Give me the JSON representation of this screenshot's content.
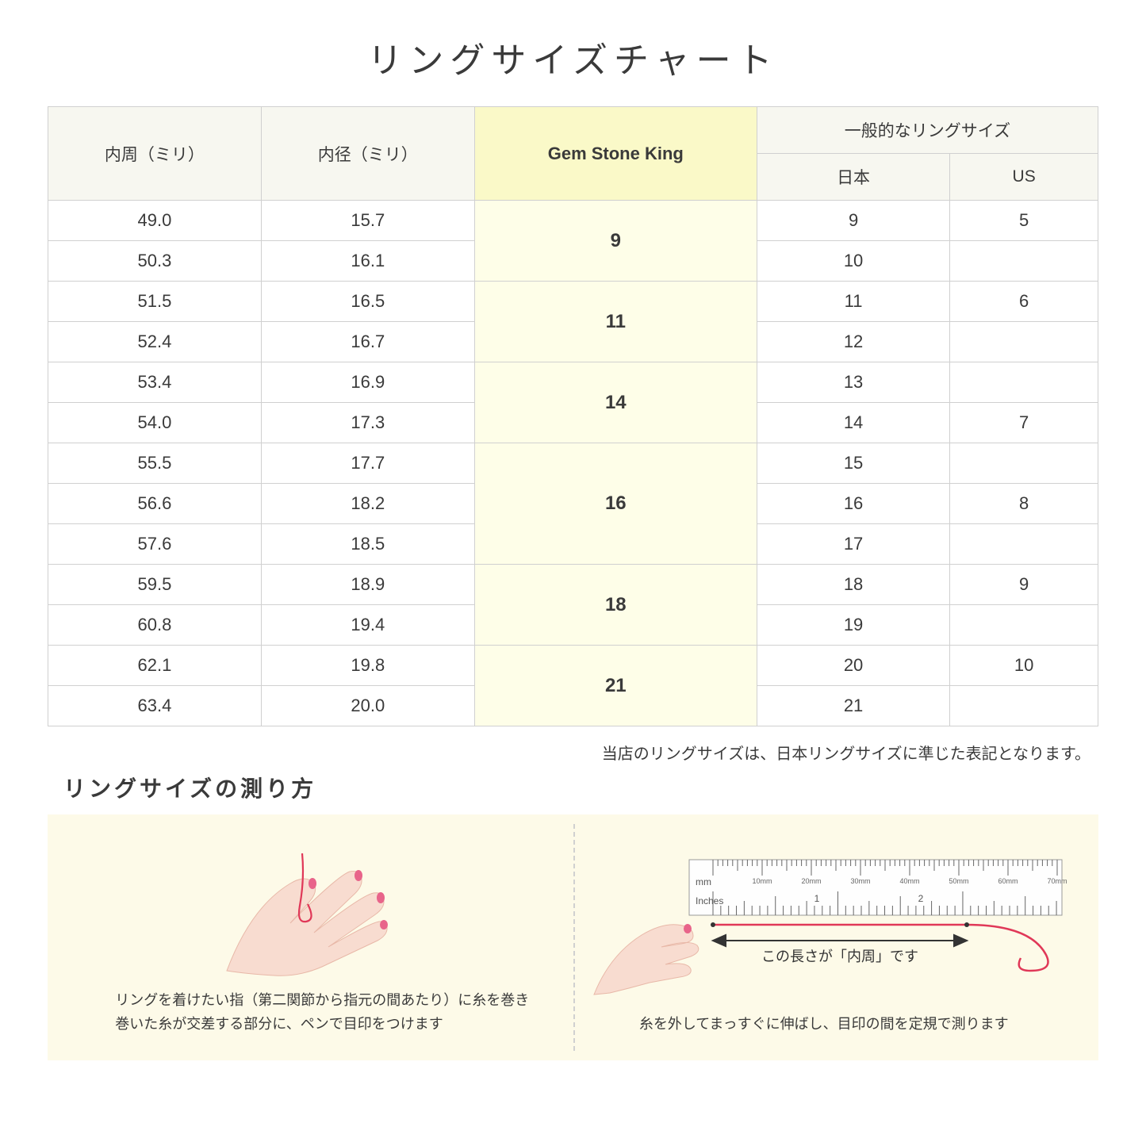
{
  "title": "リングサイズチャート",
  "note": "当店のリングサイズは、日本リングサイズに準じた表記となります。",
  "subtitle": "リングサイズの測り方",
  "table": {
    "headers": {
      "circumference": "内周（ミリ）",
      "diameter": "内径（ミリ）",
      "gsk": "Gem Stone King",
      "common_group": "一般的なリングサイズ",
      "japan": "日本",
      "us": "US"
    },
    "colors": {
      "header_bg": "#f7f7f0",
      "highlight_bg": "#faf9c8",
      "gsk_cell_bg": "#fefee8",
      "border": "#d0d0d0",
      "text": "#3a3a3a"
    },
    "groups": [
      {
        "gsk": "9",
        "rows": [
          {
            "c": "49.0",
            "d": "15.7",
            "jp": "9",
            "us": "5"
          },
          {
            "c": "50.3",
            "d": "16.1",
            "jp": "10",
            "us": ""
          }
        ]
      },
      {
        "gsk": "11",
        "rows": [
          {
            "c": "51.5",
            "d": "16.5",
            "jp": "11",
            "us": "6"
          },
          {
            "c": "52.4",
            "d": "16.7",
            "jp": "12",
            "us": ""
          }
        ]
      },
      {
        "gsk": "14",
        "rows": [
          {
            "c": "53.4",
            "d": "16.9",
            "jp": "13",
            "us": ""
          },
          {
            "c": "54.0",
            "d": "17.3",
            "jp": "14",
            "us": "7"
          }
        ]
      },
      {
        "gsk": "16",
        "rows": [
          {
            "c": "55.5",
            "d": "17.7",
            "jp": "15",
            "us": ""
          },
          {
            "c": "56.6",
            "d": "18.2",
            "jp": "16",
            "us": "8"
          },
          {
            "c": "57.6",
            "d": "18.5",
            "jp": "17",
            "us": ""
          }
        ]
      },
      {
        "gsk": "18",
        "rows": [
          {
            "c": "59.5",
            "d": "18.9",
            "jp": "18",
            "us": "9"
          },
          {
            "c": "60.8",
            "d": "19.4",
            "jp": "19",
            "us": ""
          }
        ]
      },
      {
        "gsk": "21",
        "rows": [
          {
            "c": "62.1",
            "d": "19.8",
            "jp": "20",
            "us": "10"
          },
          {
            "c": "63.4",
            "d": "20.0",
            "jp": "21",
            "us": ""
          }
        ]
      }
    ]
  },
  "instructions": {
    "background": "#fdfae8",
    "skin_color": "#f8dcd0",
    "nail_color": "#e8648a",
    "thread_color": "#e03858",
    "arrow_color": "#333333",
    "left": {
      "line1": "リングを着けたい指（第二関節から指元の間あたり）に糸を巻き",
      "line2": "巻いた糸が交差する部分に、ペンで目印をつけます"
    },
    "right": {
      "ruler_mm": "mm",
      "ruler_in": "Inches",
      "ruler_ticks_mm": [
        "10mm",
        "20mm",
        "30mm",
        "40mm",
        "50mm",
        "60mm",
        "70mm"
      ],
      "label": "この長さが「内周」です",
      "line": "糸を外してまっすぐに伸ばし、目印の間を定規で測ります"
    }
  }
}
